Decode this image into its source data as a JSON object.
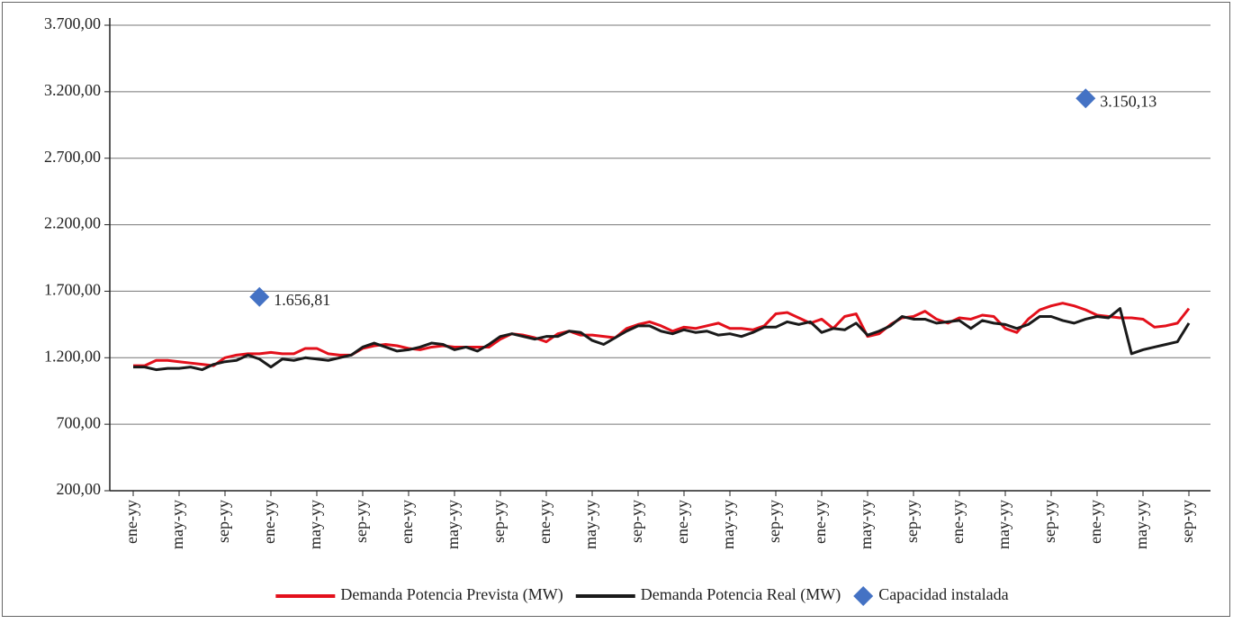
{
  "chart_data": {
    "type": "line",
    "categories": [
      "ene-yy",
      null,
      null,
      null,
      "may-yy",
      null,
      null,
      null,
      "sep-yy",
      null,
      null,
      null,
      "ene-yy",
      null,
      null,
      null,
      "may-yy",
      null,
      null,
      null,
      "sep-yy",
      null,
      null,
      null,
      "ene-yy",
      null,
      null,
      null,
      "may-yy",
      null,
      null,
      null,
      "sep-yy",
      null,
      null,
      null,
      "ene-yy",
      null,
      null,
      null,
      "may-yy",
      null,
      null,
      null,
      "sep-yy",
      null,
      null,
      null,
      "ene-yy",
      null,
      null,
      null,
      "may-yy",
      null,
      null,
      null,
      "sep-yy",
      null,
      null,
      null,
      "ene-yy",
      null,
      null,
      null,
      "may-yy",
      null,
      null,
      null,
      "sep-yy",
      null,
      null,
      null,
      "ene-yy",
      null,
      null,
      null,
      "may-yy",
      null,
      null,
      null,
      "sep-yy",
      null,
      null,
      null,
      "ene-yy",
      null,
      null,
      null,
      "may-yy",
      null,
      null,
      null,
      "sep-yy"
    ],
    "series": [
      {
        "name": "Demanda Potencia Prevista (MW)",
        "color": "#e3101b",
        "values": [
          1140,
          1140,
          1180,
          1180,
          1170,
          1160,
          1150,
          1140,
          1200,
          1220,
          1230,
          1230,
          1240,
          1230,
          1230,
          1270,
          1270,
          1230,
          1220,
          1220,
          1270,
          1290,
          1300,
          1290,
          1270,
          1260,
          1280,
          1290,
          1280,
          1280,
          1280,
          1280,
          1340,
          1380,
          1370,
          1350,
          1320,
          1380,
          1400,
          1370,
          1370,
          1360,
          1350,
          1420,
          1450,
          1470,
          1440,
          1400,
          1430,
          1420,
          1440,
          1460,
          1420,
          1420,
          1410,
          1440,
          1530,
          1540,
          1500,
          1460,
          1490,
          1420,
          1510,
          1530,
          1360,
          1380,
          1450,
          1500,
          1510,
          1550,
          1490,
          1460,
          1500,
          1490,
          1520,
          1510,
          1420,
          1390,
          1490,
          1560,
          1590,
          1610,
          1590,
          1560,
          1520,
          1510,
          1500,
          1500,
          1490,
          1430,
          1440,
          1460,
          1570
        ]
      },
      {
        "name": "Demanda Potencia Real (MW)",
        "color": "#1a1a1a",
        "values": [
          1130,
          1130,
          1110,
          1120,
          1120,
          1130,
          1110,
          1150,
          1170,
          1180,
          1220,
          1190,
          1130,
          1190,
          1180,
          1200,
          1190,
          1180,
          1200,
          1220,
          1280,
          1310,
          1280,
          1250,
          1260,
          1280,
          1310,
          1300,
          1260,
          1280,
          1250,
          1300,
          1360,
          1380,
          1360,
          1340,
          1360,
          1360,
          1400,
          1390,
          1330,
          1300,
          1350,
          1400,
          1440,
          1440,
          1400,
          1380,
          1410,
          1390,
          1400,
          1370,
          1380,
          1360,
          1390,
          1430,
          1430,
          1470,
          1450,
          1470,
          1390,
          1420,
          1410,
          1460,
          1370,
          1400,
          1440,
          1510,
          1490,
          1490,
          1460,
          1470,
          1480,
          1420,
          1480,
          1460,
          1450,
          1420,
          1450,
          1510,
          1510,
          1480,
          1460,
          1490,
          1510,
          1500,
          1570,
          1230,
          1260,
          1280,
          1300,
          1320,
          1460
        ]
      },
      {
        "name": "Capacidad instalada",
        "color": "#4472c4",
        "type": "scatter",
        "values": [
          null,
          null,
          null,
          null,
          null,
          null,
          null,
          null,
          null,
          null,
          null,
          1656.81,
          null,
          null,
          null,
          null,
          null,
          null,
          null,
          null,
          null,
          null,
          null,
          null,
          null,
          null,
          null,
          null,
          null,
          null,
          null,
          null,
          null,
          null,
          null,
          null,
          null,
          null,
          null,
          null,
          null,
          null,
          null,
          null,
          null,
          null,
          null,
          null,
          null,
          null,
          null,
          null,
          null,
          null,
          null,
          null,
          null,
          null,
          null,
          null,
          null,
          null,
          null,
          null,
          null,
          null,
          null,
          null,
          null,
          null,
          null,
          null,
          null,
          null,
          null,
          null,
          null,
          null,
          null,
          null,
          null,
          null,
          null,
          3150.13,
          null,
          null,
          null,
          null,
          null,
          null,
          null,
          null,
          null
        ],
        "value_labels": [
          null,
          null,
          null,
          null,
          null,
          null,
          null,
          null,
          null,
          null,
          null,
          "1.656,81",
          null,
          null,
          null,
          null,
          null,
          null,
          null,
          null,
          null,
          null,
          null,
          null,
          null,
          null,
          null,
          null,
          null,
          null,
          null,
          null,
          null,
          null,
          null,
          null,
          null,
          null,
          null,
          null,
          null,
          null,
          null,
          null,
          null,
          null,
          null,
          null,
          null,
          null,
          null,
          null,
          null,
          null,
          null,
          null,
          null,
          null,
          null,
          null,
          null,
          null,
          null,
          null,
          null,
          null,
          null,
          null,
          null,
          null,
          null,
          null,
          null,
          null,
          null,
          null,
          null,
          null,
          null,
          null,
          null,
          null,
          null,
          "3.150,13",
          null,
          null,
          null,
          null,
          null,
          null,
          null,
          null,
          null
        ]
      }
    ],
    "ylim": [
      200,
      3700
    ],
    "yticks": [
      {
        "value": 200,
        "label": "200,00"
      },
      {
        "value": 700,
        "label": "700,00"
      },
      {
        "value": 1200,
        "label": "1.200,00"
      },
      {
        "value": 1700,
        "label": "1.700,00"
      },
      {
        "value": 2200,
        "label": "2.200,00"
      },
      {
        "value": 2700,
        "label": "2.700,00"
      },
      {
        "value": 3200,
        "label": "3.200,00"
      },
      {
        "value": 3700,
        "label": "3.700,00"
      }
    ],
    "grid": true,
    "legend": "bottom"
  }
}
